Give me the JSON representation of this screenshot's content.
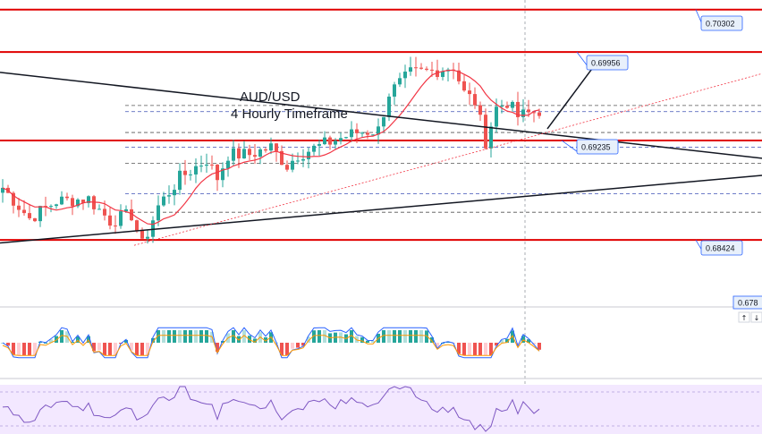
{
  "chart_data": {
    "type": "candlestick",
    "symbol": "AUD/USD",
    "timeframe": "4 Hourly Timeframe",
    "title_lines": [
      "AUD/USD",
      "4 Hourly Timeframe"
    ],
    "y_range": [
      0.679,
      0.7038
    ],
    "resistance_levels": [
      {
        "label": "0.70302",
        "value": 0.70302
      },
      {
        "label": "0.69956",
        "value": 0.69956
      }
    ],
    "support_levels": [
      {
        "label": "0.69235",
        "value": 0.69235
      },
      {
        "label": "0.68424",
        "value": 0.68424
      }
    ],
    "current_price_label": "0.678",
    "dashed_levels": [
      0.6952,
      0.6947,
      0.693,
      0.6918,
      0.6905,
      0.688,
      0.6865
    ],
    "trendlines": [
      {
        "name": "descending",
        "from": [
          0,
          0.6979
        ],
        "to": [
          852,
          0.6909
        ]
      },
      {
        "name": "ascending",
        "from": [
          0,
          0.684
        ],
        "to": [
          852,
          0.6895
        ]
      }
    ],
    "colors": {
      "up": "#26a69a",
      "down": "#ef5350",
      "level": "#e00000",
      "ma": "#f23645",
      "label_bg": "#e8f0fb",
      "label_border": "#2962ff",
      "macd_line": "#2962ff",
      "signal_line": "#ff9800",
      "rsi": "#7e57c2",
      "rsi_band": "#f3e8ff"
    }
  }
}
